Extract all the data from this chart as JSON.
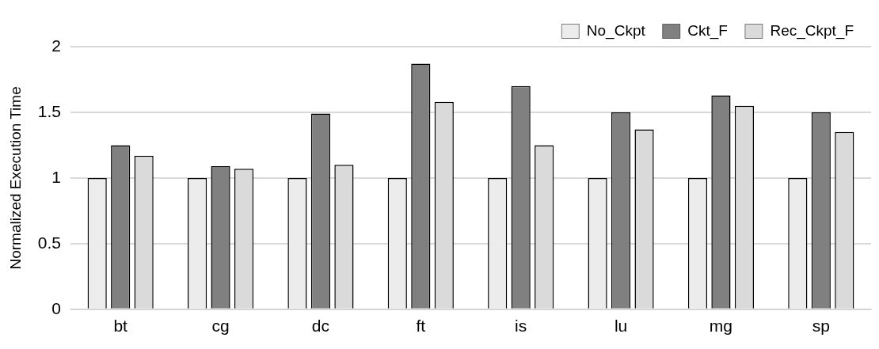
{
  "chart_data": {
    "type": "bar",
    "ylabel": "Normalized Execution Time",
    "categories": [
      "bt",
      "cg",
      "dc",
      "ft",
      "is",
      "lu",
      "mg",
      "sp"
    ],
    "series": [
      {
        "name": "No_Ckpt",
        "color": "#ececec",
        "values": [
          1,
          1,
          1,
          1,
          1,
          1,
          1,
          1
        ]
      },
      {
        "name": "Ckt_F",
        "color": "#808080",
        "values": [
          1.25,
          1.09,
          1.49,
          1.87,
          1.7,
          1.5,
          1.63,
          1.5
        ]
      },
      {
        "name": "Rec_Ckpt_F",
        "color": "#dadada",
        "values": [
          1.17,
          1.07,
          1.1,
          1.58,
          1.25,
          1.37,
          1.55,
          1.35
        ]
      }
    ],
    "ylim": [
      0,
      2
    ],
    "yticks": [
      0,
      0.5,
      1,
      1.5,
      2
    ],
    "grid": "y",
    "legend": "top right"
  }
}
